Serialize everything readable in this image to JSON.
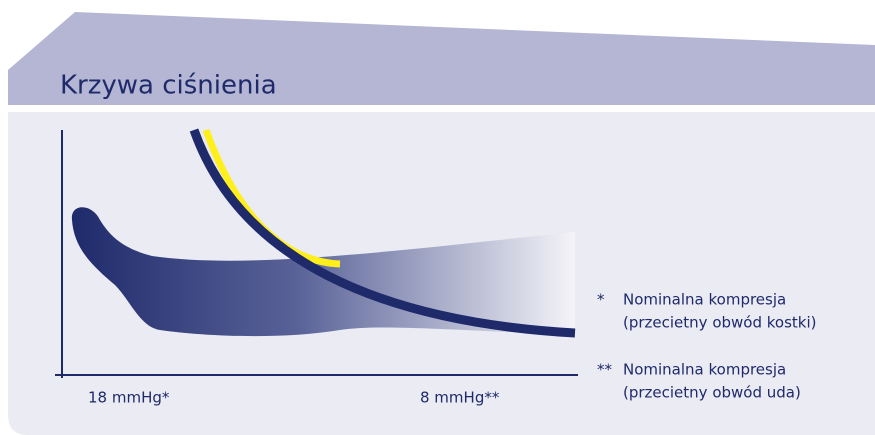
{
  "header": {
    "title": "Krzywa ciśnienia"
  },
  "axis": {
    "labels": [
      "18 mmHg*",
      "8 mmHg**"
    ]
  },
  "notes": [
    {
      "marker": "*",
      "lines": [
        "Nominalna kompresja",
        "(przecietny obwód kostki)"
      ]
    },
    {
      "marker": "**",
      "lines": [
        "Nominalna kompresja",
        "(przecietny obwód uda)"
      ]
    }
  ]
}
